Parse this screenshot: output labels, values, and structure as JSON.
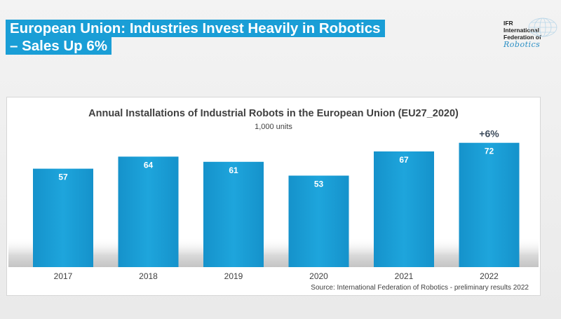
{
  "slide": {
    "title_line1": "European Union: Industries Invest Heavily in Robotics",
    "title_line2": "– Sales Up 6%"
  },
  "logo": {
    "line1": "IFR",
    "line2": "International",
    "line3": "Federation of",
    "line4": "Robotics"
  },
  "colors": {
    "title_bg": "#1a9ed6",
    "bar": "#1a9ed6",
    "growth_text": "#3d4b5c"
  },
  "chart_data": {
    "type": "bar",
    "title": "Annual Installations of Industrial Robots in the European Union (EU27_2020)",
    "subtitle": "1,000 units",
    "categories": [
      "2017",
      "2018",
      "2019",
      "2020",
      "2021",
      "2022"
    ],
    "values": [
      57,
      64,
      61,
      53,
      67,
      72
    ],
    "data_labels": [
      "57",
      "64",
      "61",
      "53",
      "67",
      "72"
    ],
    "annotation": {
      "category": "2022",
      "text": "+6%"
    },
    "source": "Source: International Federation of Robotics - preliminary results 2022",
    "ylim": [
      0,
      80
    ],
    "grid": false,
    "legend": "none"
  }
}
